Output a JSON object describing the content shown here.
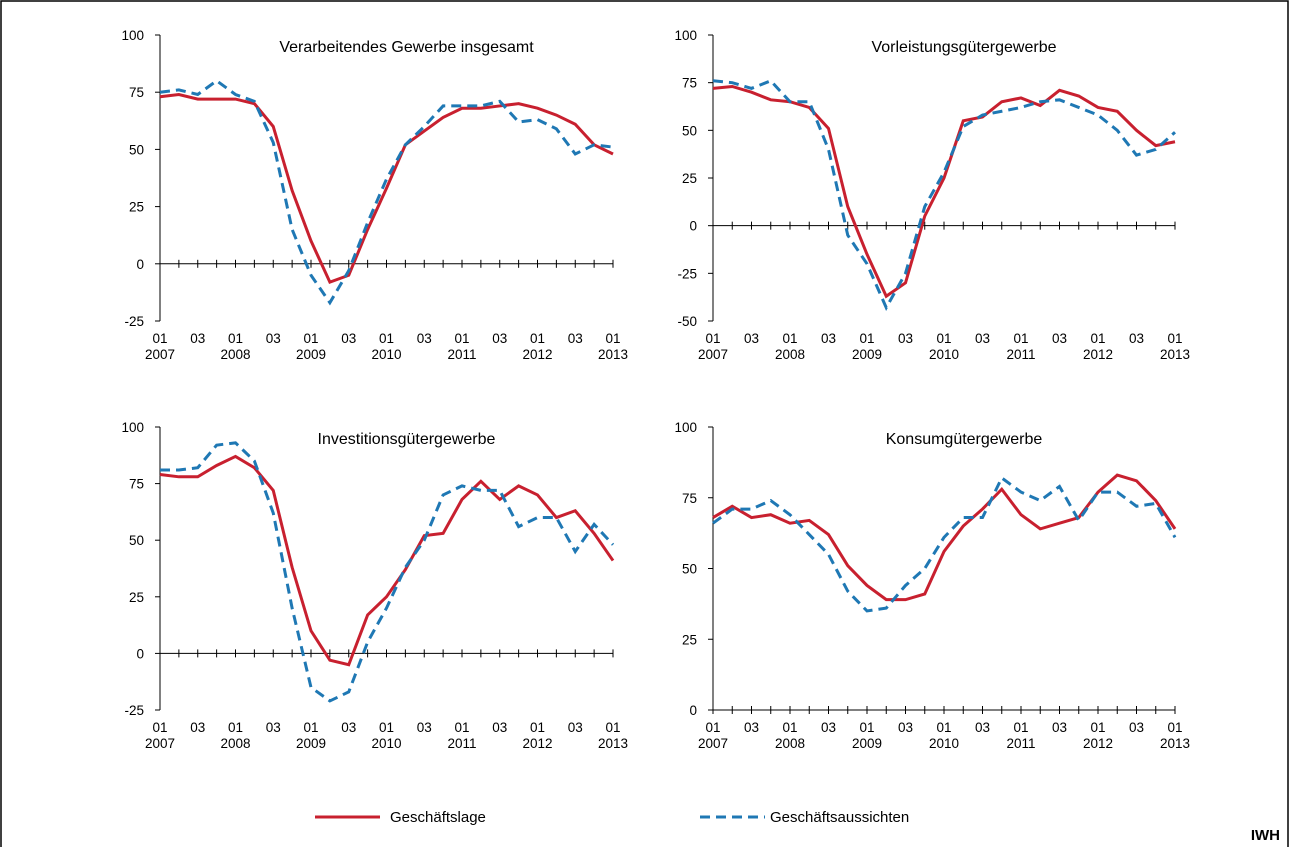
{
  "chart_data": [
    {
      "type": "line",
      "title": "Verarbeitendes Gewerbe insgesamt",
      "categories": [
        [
          "01",
          "2007"
        ],
        null,
        [
          "03"
        ],
        null,
        [
          "01",
          "2008"
        ],
        null,
        [
          "03"
        ],
        null,
        [
          "01",
          "2009"
        ],
        null,
        [
          "03"
        ],
        null,
        [
          "01",
          "2010"
        ],
        null,
        [
          "03"
        ],
        null,
        [
          "01",
          "2011"
        ],
        null,
        [
          "03"
        ],
        null,
        [
          "01",
          "2012"
        ],
        null,
        [
          "03"
        ],
        null,
        [
          "01",
          "2013"
        ]
      ],
      "ylim": [
        -25,
        100
      ],
      "yticks": [
        -25,
        0,
        25,
        50,
        75,
        100
      ],
      "series": [
        {
          "name": "Geschäftslage",
          "color": "#c8202f",
          "dash": false,
          "values": [
            73,
            74,
            72,
            72,
            72,
            70,
            60,
            32,
            10,
            -8,
            -5,
            15,
            33,
            52,
            58,
            64,
            68,
            68,
            69,
            70,
            68,
            65,
            61,
            52,
            48
          ]
        },
        {
          "name": "Geschäftsaussichten",
          "color": "#1f78b4",
          "dash": true,
          "values": [
            75,
            76,
            74,
            80,
            74,
            71,
            53,
            15,
            -5,
            -17,
            -3,
            18,
            37,
            52,
            60,
            69,
            69,
            69,
            71,
            62,
            63,
            59,
            48,
            52,
            51
          ]
        }
      ]
    },
    {
      "type": "line",
      "title": "Vorleistungsgütergewerbe",
      "categories": [
        [
          "01",
          "2007"
        ],
        null,
        [
          "03"
        ],
        null,
        [
          "01",
          "2008"
        ],
        null,
        [
          "03"
        ],
        null,
        [
          "01",
          "2009"
        ],
        null,
        [
          "03"
        ],
        null,
        [
          "01",
          "2010"
        ],
        null,
        [
          "03"
        ],
        null,
        [
          "01",
          "2011"
        ],
        null,
        [
          "03"
        ],
        null,
        [
          "01",
          "2012"
        ],
        null,
        [
          "03"
        ],
        null,
        [
          "01",
          "2013"
        ]
      ],
      "ylim": [
        -50,
        100
      ],
      "yticks": [
        -50,
        -25,
        0,
        25,
        50,
        75,
        100
      ],
      "series": [
        {
          "name": "Geschäftslage",
          "color": "#c8202f",
          "dash": false,
          "values": [
            72,
            73,
            70,
            66,
            65,
            62,
            51,
            10,
            -15,
            -37,
            -30,
            5,
            25,
            55,
            57,
            65,
            67,
            63,
            71,
            68,
            62,
            60,
            50,
            42,
            44
          ]
        },
        {
          "name": "Geschäftsaussichten",
          "color": "#1f78b4",
          "dash": true,
          "values": [
            76,
            75,
            72,
            76,
            65,
            65,
            40,
            -5,
            -20,
            -43,
            -25,
            10,
            28,
            52,
            58,
            60,
            62,
            65,
            66,
            62,
            58,
            50,
            37,
            40,
            49
          ]
        }
      ]
    },
    {
      "type": "line",
      "title": "Investitionsgütergewerbe",
      "categories": [
        [
          "01",
          "2007"
        ],
        null,
        [
          "03"
        ],
        null,
        [
          "01",
          "2008"
        ],
        null,
        [
          "03"
        ],
        null,
        [
          "01",
          "2009"
        ],
        null,
        [
          "03"
        ],
        null,
        [
          "01",
          "2010"
        ],
        null,
        [
          "03"
        ],
        null,
        [
          "01",
          "2011"
        ],
        null,
        [
          "03"
        ],
        null,
        [
          "01",
          "2012"
        ],
        null,
        [
          "03"
        ],
        null,
        [
          "01",
          "2013"
        ]
      ],
      "ylim": [
        -25,
        100
      ],
      "yticks": [
        -25,
        0,
        25,
        50,
        75,
        100
      ],
      "series": [
        {
          "name": "Geschäftslage",
          "color": "#c8202f",
          "dash": false,
          "values": [
            79,
            78,
            78,
            83,
            87,
            82,
            72,
            38,
            10,
            -3,
            -5,
            17,
            25,
            37,
            52,
            53,
            68,
            76,
            68,
            74,
            70,
            60,
            63,
            53,
            41
          ]
        },
        {
          "name": "Geschäftsaussichten",
          "color": "#1f78b4",
          "dash": true,
          "values": [
            81,
            81,
            82,
            92,
            93,
            85,
            62,
            20,
            -15,
            -21,
            -17,
            5,
            20,
            38,
            50,
            70,
            74,
            72,
            72,
            56,
            60,
            60,
            45,
            57,
            48
          ]
        }
      ]
    },
    {
      "type": "line",
      "title": "Konsumgütergewerbe",
      "categories": [
        [
          "01",
          "2007"
        ],
        null,
        [
          "03"
        ],
        null,
        [
          "01",
          "2008"
        ],
        null,
        [
          "03"
        ],
        null,
        [
          "01",
          "2009"
        ],
        null,
        [
          "03"
        ],
        null,
        [
          "01",
          "2010"
        ],
        null,
        [
          "03"
        ],
        null,
        [
          "01",
          "2011"
        ],
        null,
        [
          "03"
        ],
        null,
        [
          "01",
          "2012"
        ],
        null,
        [
          "03"
        ],
        null,
        [
          "01",
          "2013"
        ]
      ],
      "ylim": [
        0,
        100
      ],
      "yticks": [
        0,
        25,
        50,
        75,
        100
      ],
      "series": [
        {
          "name": "Geschäftslage",
          "color": "#c8202f",
          "dash": false,
          "values": [
            68,
            72,
            68,
            69,
            66,
            67,
            62,
            51,
            44,
            39,
            39,
            41,
            56,
            65,
            71,
            78,
            69,
            64,
            66,
            68,
            77,
            83,
            81,
            74,
            64
          ]
        },
        {
          "name": "Geschäftsaussichten",
          "color": "#1f78b4",
          "dash": true,
          "values": [
            66,
            71,
            71,
            74,
            69,
            62,
            55,
            42,
            35,
            36,
            44,
            50,
            61,
            68,
            68,
            82,
            77,
            74,
            79,
            67,
            77,
            77,
            72,
            73,
            61
          ]
        }
      ]
    }
  ],
  "source": "IWH"
}
